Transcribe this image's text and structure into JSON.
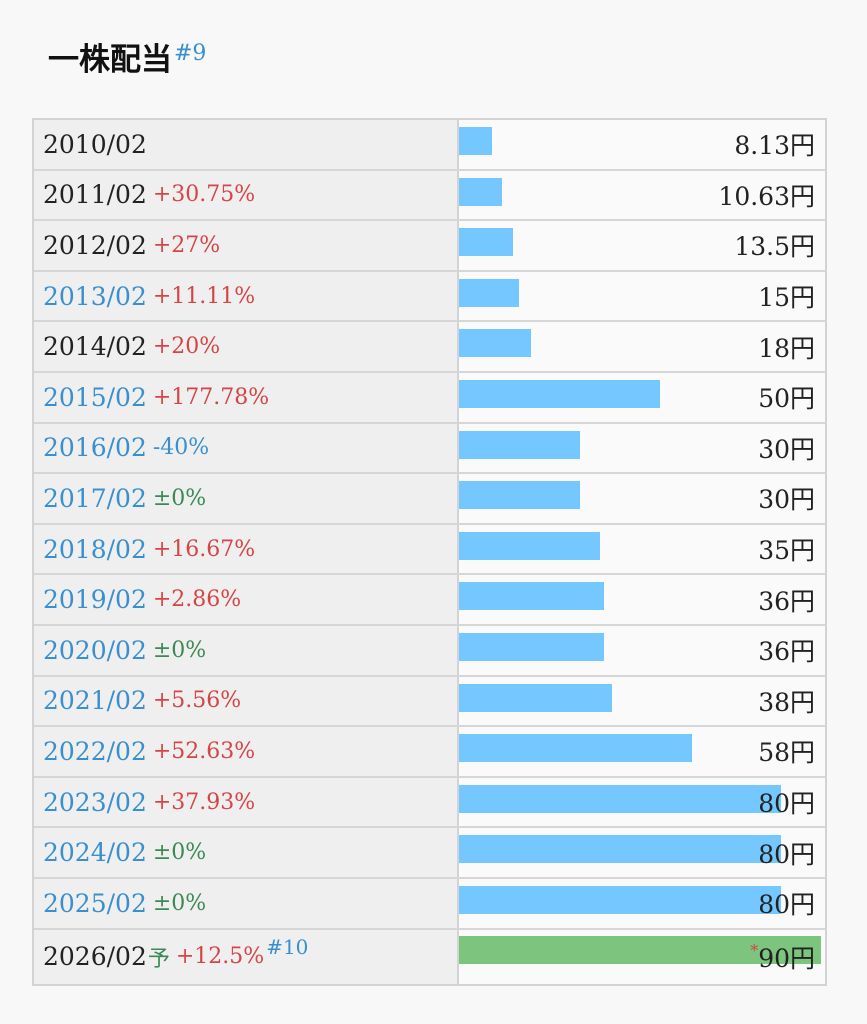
{
  "title": "一株配当",
  "title_note": "#9",
  "max_value": 90,
  "colors": {
    "bar": "#74c8ff",
    "forecast_bar": "#7dc47f",
    "up": "#d64545",
    "down": "#3a8fcf",
    "flat": "#3b8a55"
  },
  "rows": [
    {
      "year": "2010/02",
      "change": "",
      "trend": "none",
      "link": false,
      "value": 8.13,
      "amount": "8.13円"
    },
    {
      "year": "2011/02",
      "change": "+30.75%",
      "trend": "up",
      "link": false,
      "value": 10.63,
      "amount": "10.63円"
    },
    {
      "year": "2012/02",
      "change": "+27%",
      "trend": "up",
      "link": false,
      "value": 13.5,
      "amount": "13.5円"
    },
    {
      "year": "2013/02",
      "change": "+11.11%",
      "trend": "up",
      "link": true,
      "value": 15,
      "amount": "15円"
    },
    {
      "year": "2014/02",
      "change": "+20%",
      "trend": "up",
      "link": false,
      "value": 18,
      "amount": "18円"
    },
    {
      "year": "2015/02",
      "change": "+177.78%",
      "trend": "up",
      "link": true,
      "value": 50,
      "amount": "50円"
    },
    {
      "year": "2016/02",
      "change": "-40%",
      "trend": "down",
      "link": true,
      "value": 30,
      "amount": "30円"
    },
    {
      "year": "2017/02",
      "change": "±0%",
      "trend": "flat",
      "link": true,
      "value": 30,
      "amount": "30円"
    },
    {
      "year": "2018/02",
      "change": "+16.67%",
      "trend": "up",
      "link": true,
      "value": 35,
      "amount": "35円"
    },
    {
      "year": "2019/02",
      "change": "+2.86%",
      "trend": "up",
      "link": true,
      "value": 36,
      "amount": "36円"
    },
    {
      "year": "2020/02",
      "change": "±0%",
      "trend": "flat",
      "link": true,
      "value": 36,
      "amount": "36円"
    },
    {
      "year": "2021/02",
      "change": "+5.56%",
      "trend": "up",
      "link": true,
      "value": 38,
      "amount": "38円"
    },
    {
      "year": "2022/02",
      "change": "+52.63%",
      "trend": "up",
      "link": true,
      "value": 58,
      "amount": "58円"
    },
    {
      "year": "2023/02",
      "change": "+37.93%",
      "trend": "up",
      "link": true,
      "value": 80,
      "amount": "80円"
    },
    {
      "year": "2024/02",
      "change": "±0%",
      "trend": "flat",
      "link": true,
      "value": 80,
      "amount": "80円"
    },
    {
      "year": "2025/02",
      "change": "±0%",
      "trend": "flat",
      "link": true,
      "value": 80,
      "amount": "80円"
    }
  ],
  "forecast": {
    "year": "2026/02",
    "mark": "予",
    "change": "+12.5%",
    "note": "#10",
    "star": "*",
    "value": 90,
    "amount": "90円"
  }
}
